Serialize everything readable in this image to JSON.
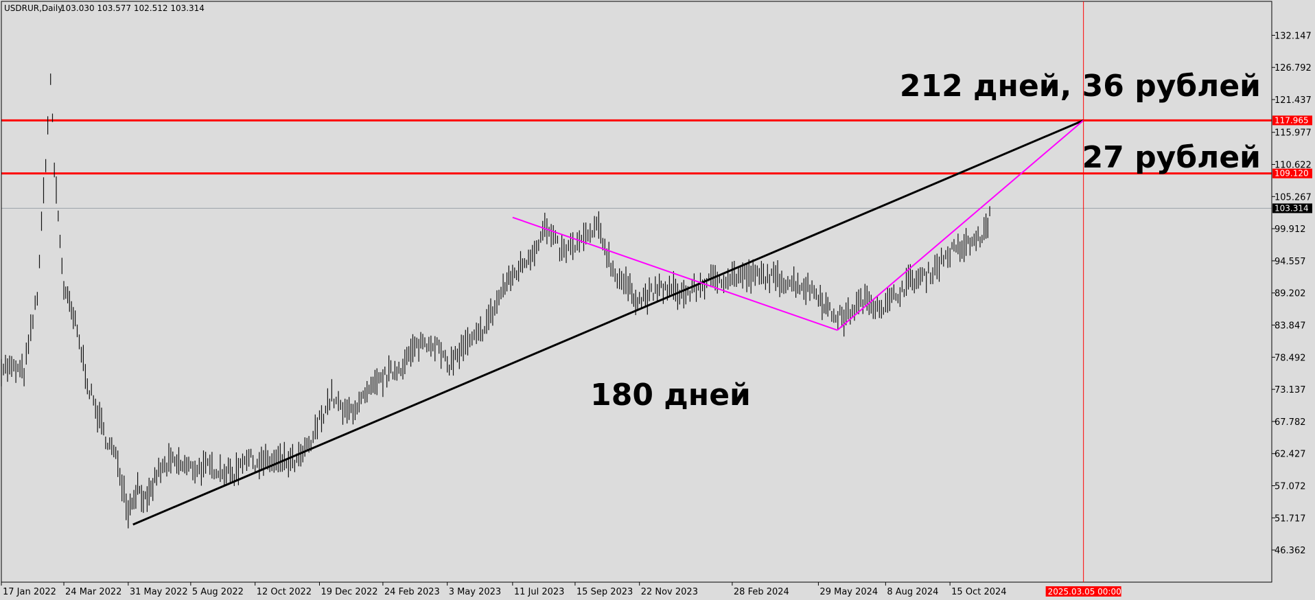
{
  "chart_data": {
    "type": "line",
    "header": {
      "symbol_label": "USDRUR,Daily",
      "ohlc_label": "103.030 103.577 102.512 103.314"
    },
    "y_axis": {
      "ticks": [
        "132.147",
        "126.792",
        "121.437",
        "115.977",
        "110.622",
        "105.267",
        "99.912",
        "94.557",
        "89.202",
        "83.847",
        "78.492",
        "73.137",
        "67.782",
        "62.427",
        "57.072",
        "51.717",
        "46.362"
      ],
      "ylim": [
        45.3,
        136.0
      ]
    },
    "x_axis": {
      "ticks": [
        "17 Jan 2022",
        "24 Mar 2022",
        "31 May 2022",
        "5 Aug 2022",
        "12 Oct 2022",
        "19 Dec 2022",
        "24 Feb 2023",
        "3 May 2023",
        "11 Jul 2023",
        "15 Sep 2023",
        "22 Nov 2023",
        "28 Feb 2024",
        "29 May 2024",
        "8 Aug 2024",
        "15 Oct 2024"
      ],
      "marker_label": "2025.03.05 00:00"
    },
    "price_series": [
      {
        "date": "17 Jan 2022",
        "value": 77
      },
      {
        "date": "10 Feb 2022",
        "value": 76
      },
      {
        "date": "24 Feb 2022",
        "value": 89
      },
      {
        "date": "7 Mar 2022",
        "value": 117
      },
      {
        "date": "10 Mar 2022",
        "value": 125
      },
      {
        "date": "14 Mar 2022",
        "value": 110
      },
      {
        "date": "24 Mar 2022",
        "value": 90
      },
      {
        "date": "5 Apr 2022",
        "value": 84
      },
      {
        "date": "20 Apr 2022",
        "value": 73
      },
      {
        "date": "5 May 2022",
        "value": 66
      },
      {
        "date": "20 May 2022",
        "value": 61
      },
      {
        "date": "31 May 2022",
        "value": 53
      },
      {
        "date": "10 Jun 2022",
        "value": 57
      },
      {
        "date": "20 Jun 2022",
        "value": 54
      },
      {
        "date": "30 Jun 2022",
        "value": 59
      },
      {
        "date": "15 Jul 2022",
        "value": 61
      },
      {
        "date": "5 Aug 2022",
        "value": 60
      },
      {
        "date": "1 Sep 2022",
        "value": 60
      },
      {
        "date": "20 Sep 2022",
        "value": 59
      },
      {
        "date": "1 Oct 2022",
        "value": 62
      },
      {
        "date": "12 Oct 2022",
        "value": 61
      },
      {
        "date": "1 Nov 2022",
        "value": 61
      },
      {
        "date": "25 Nov 2022",
        "value": 61
      },
      {
        "date": "10 Dec 2022",
        "value": 64
      },
      {
        "date": "19 Dec 2022",
        "value": 68
      },
      {
        "date": "1 Jan 2023",
        "value": 72
      },
      {
        "date": "15 Jan 2023",
        "value": 69
      },
      {
        "date": "1 Feb 2023",
        "value": 71
      },
      {
        "date": "24 Feb 2023",
        "value": 75
      },
      {
        "date": "15 Mar 2023",
        "value": 77
      },
      {
        "date": "5 Apr 2023",
        "value": 81
      },
      {
        "date": "20 Apr 2023",
        "value": 81
      },
      {
        "date": "3 May 2023",
        "value": 77
      },
      {
        "date": "20 May 2023",
        "value": 80
      },
      {
        "date": "5 Jun 2023",
        "value": 82
      },
      {
        "date": "20 Jun 2023",
        "value": 86
      },
      {
        "date": "1 Jul 2023",
        "value": 90
      },
      {
        "date": "11 Jul 2023",
        "value": 92
      },
      {
        "date": "1 Aug 2023",
        "value": 96
      },
      {
        "date": "14 Aug 2023",
        "value": 100
      },
      {
        "date": "1 Sep 2023",
        "value": 96
      },
      {
        "date": "15 Sep 2023",
        "value": 97
      },
      {
        "date": "10 Oct 2023",
        "value": 100
      },
      {
        "date": "25 Oct 2023",
        "value": 93
      },
      {
        "date": "10 Nov 2023",
        "value": 90
      },
      {
        "date": "22 Nov 2023",
        "value": 88
      },
      {
        "date": "15 Dec 2023",
        "value": 90
      },
      {
        "date": "10 Jan 2024",
        "value": 89
      },
      {
        "date": "1 Feb 2024",
        "value": 91
      },
      {
        "date": "28 Feb 2024",
        "value": 92
      },
      {
        "date": "1 Apr 2024",
        "value": 92
      },
      {
        "date": "1 May 2024",
        "value": 91
      },
      {
        "date": "20 May 2024",
        "value": 90
      },
      {
        "date": "29 May 2024",
        "value": 89
      },
      {
        "date": "10 Jun 2024",
        "value": 86
      },
      {
        "date": "25 Jun 2024",
        "value": 85
      },
      {
        "date": "15 Jul 2024",
        "value": 88
      },
      {
        "date": "8 Aug 2024",
        "value": 87
      },
      {
        "date": "1 Sep 2024",
        "value": 91
      },
      {
        "date": "20 Sep 2024",
        "value": 92
      },
      {
        "date": "15 Oct 2024",
        "value": 96
      },
      {
        "date": "1 Nov 2024",
        "value": 97
      },
      {
        "date": "20 Nov 2024",
        "value": 99
      },
      {
        "date": "28 Nov 2024",
        "value": 103
      }
    ],
    "trend_lines": [
      {
        "color": "#000000",
        "from": {
          "date": "5 Jun 2022",
          "value": 50.6
        },
        "to": {
          "date": "5 Mar 2025",
          "value": 117.965
        }
      },
      {
        "color": "#ff00ff",
        "from": {
          "date": "11 Jul 2023",
          "value": 101.8
        },
        "to": {
          "date": "18 Jun 2024",
          "value": 83.0
        }
      },
      {
        "color": "#ff00ff",
        "from": {
          "date": "18 Jun 2024",
          "value": 83.0
        },
        "to": {
          "date": "5 Mar 2025",
          "value": 117.965
        }
      }
    ],
    "levels": [
      {
        "value": 117.965,
        "label": "117.965",
        "color": "#ff0000"
      },
      {
        "value": 109.12,
        "label": "109.120",
        "color": "#ff0000"
      }
    ],
    "current_price": {
      "value": 103.314,
      "label": "103.314"
    },
    "annotations": [
      "212 дней, 36 рублей",
      "27 рублей",
      "180 дней"
    ],
    "colors": {
      "background": "#dcdcdc",
      "price": "#000000",
      "level": "#ff0000",
      "trend": "#000000",
      "magenta": "#ff00ff"
    }
  }
}
